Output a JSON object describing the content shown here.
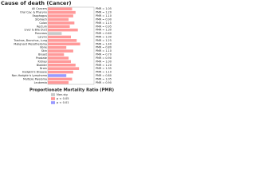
{
  "chart_data": {
    "type": "hbar",
    "title": "Cause of death (Cancer)",
    "x_label": "Proportionate Mortality Ratio (PMR)",
    "categories": [
      "All Cancers",
      "Oral Cav. & Pharynx",
      "Esophagus",
      "Stomach",
      "Colon",
      "Rectum",
      "Liver & Bile Duct",
      "Pancreas",
      "Larynx",
      "Trachea, Bronchus, Lung",
      "Malignant Mesothelioma",
      "Bone",
      "Skin",
      "Breast",
      "Prostate",
      "Kidney",
      "Bladder",
      "Brain",
      "Hodgkin's Disease",
      "Non-Hodgkin's Lymphoma",
      "Multiple Myeloma",
      "Leukemia"
    ],
    "values": [
      1.05,
      1.2,
      1.1,
      0.9,
      1.15,
      0.95,
      1.3,
      0.6,
      1.0,
      1.25,
      1.4,
      0.8,
      1.1,
      0.7,
      0.9,
      1.0,
      1.2,
      1.35,
      1.1,
      0.8,
      1.05,
      0.9
    ],
    "value_labels": [
      "PMR = 1.05",
      "PMR = 1.20",
      "PMR = 1.10",
      "PMR = 0.90",
      "PMR = 1.15",
      "PMR = 0.95",
      "PMR = 1.30",
      "PMR = 0.60",
      "PMR = 1.00",
      "PMR = 1.25",
      "PMR = 1.40",
      "PMR = 0.80",
      "PMR = 1.10",
      "PMR = 0.70",
      "PMR = 0.90",
      "PMR = 1.00",
      "PMR = 1.20",
      "PMR = 1.35",
      "PMR = 1.10",
      "PMR = 0.80",
      "PMR = 1.05",
      "PMR = 0.90"
    ],
    "colors": [
      "#ff9999",
      "#ff9999",
      "#ff9999",
      "#ff9999",
      "#ff9999",
      "#ff9999",
      "#ff9999",
      "#c8c8c8",
      "#ff9999",
      "#ff9999",
      "#ff9999",
      "#ff9999",
      "#ff9999",
      "#ff9999",
      "#ff9999",
      "#ff9999",
      "#ff9999",
      "#ff9999",
      "#ff9999",
      "#9999ff",
      "#ff9999",
      "#ff9999"
    ],
    "xlim": [
      0,
      2
    ],
    "legend": [
      {
        "name": "Non-sig",
        "color": "#c8c8c8"
      },
      {
        "name": "p < 0.05",
        "color": "#ff9999"
      },
      {
        "name": "p < 0.01",
        "color": "#9999ff"
      }
    ]
  }
}
